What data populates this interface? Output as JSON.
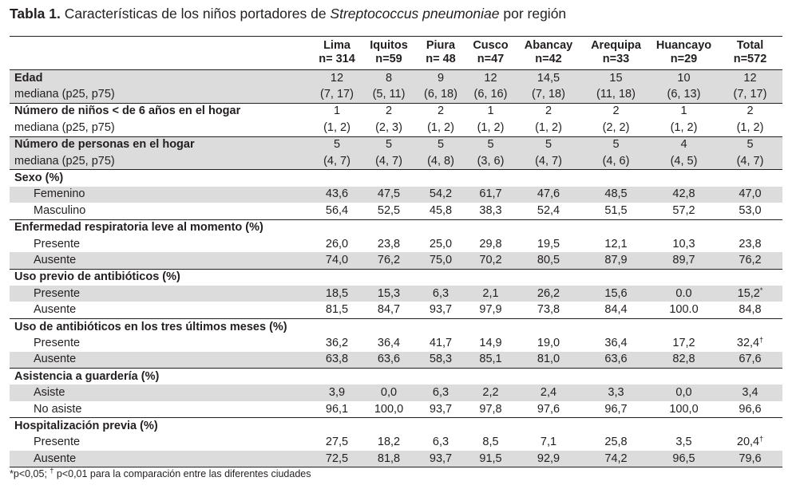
{
  "caption": {
    "label": "Tabla 1.",
    "text_before": " Características de los niños portadores de ",
    "species": "Streptococcus pneumoniae",
    "text_after": " por región"
  },
  "columns": [
    {
      "name": "Lima",
      "n": "n= 314"
    },
    {
      "name": "Iquitos",
      "n": "n=59"
    },
    {
      "name": "Piura",
      "n": "n= 48"
    },
    {
      "name": "Cusco",
      "n": "n=47"
    },
    {
      "name": "Abancay",
      "n": "n=42"
    },
    {
      "name": "Arequipa",
      "n": "n=33"
    },
    {
      "name": "Huancayo",
      "n": "n=29"
    },
    {
      "name": "Total",
      "n": "n=572"
    }
  ],
  "rows": [
    {
      "label": "Edad",
      "kind": "bold",
      "band": true,
      "top": true,
      "values": [
        "12",
        "8",
        "9",
        "12",
        "14,5",
        "15",
        "10",
        "12"
      ]
    },
    {
      "label": "mediana (p25, p75)",
      "kind": "plain",
      "band": true,
      "values": [
        "(7, 17)",
        "(5, 11)",
        "(6, 18)",
        "(6, 16)",
        "(7, 18)",
        "(11, 18)",
        "(6, 13)",
        "(7, 17)"
      ]
    },
    {
      "label": "Número de niños < de 6 años en el hogar",
      "kind": "bold",
      "band": false,
      "top": true,
      "values": [
        "1",
        "2",
        "2",
        "1",
        "2",
        "2",
        "1",
        "2"
      ]
    },
    {
      "label": "mediana (p25, p75)",
      "kind": "plain",
      "band": false,
      "values": [
        "(1, 2)",
        "(2, 3)",
        "(1, 2)",
        "(1, 2)",
        "(1, 2)",
        "(2, 2)",
        "(1, 2)",
        "(1, 2)"
      ]
    },
    {
      "label": "Número de personas en el hogar",
      "kind": "bold",
      "band": true,
      "top": true,
      "values": [
        "5",
        "5",
        "5",
        "5",
        "5",
        "5",
        "4",
        "5"
      ]
    },
    {
      "label": "mediana (p25, p75)",
      "kind": "plain",
      "band": true,
      "values": [
        "(4, 7)",
        "(4, 7)",
        "(4, 8)",
        "(3, 6)",
        "(4, 7)",
        "(4, 6)",
        "(4, 5)",
        "(4, 7)"
      ]
    },
    {
      "label": "Sexo (%)",
      "kind": "bold",
      "band": false,
      "top": true,
      "values": [
        "",
        "",
        "",
        "",
        "",
        "",
        "",
        ""
      ]
    },
    {
      "label": "Femenino",
      "kind": "indent",
      "band": true,
      "values": [
        "43,6",
        "47,5",
        "54,2",
        "61,7",
        "47,6",
        "48,5",
        "42,8",
        "47,0"
      ]
    },
    {
      "label": "Masculino",
      "kind": "indent",
      "band": false,
      "values": [
        "56,4",
        "52,5",
        "45,8",
        "38,3",
        "52,4",
        "51,5",
        "57,2",
        "53,0"
      ]
    },
    {
      "label": "Enfermedad respiratoria leve al momento (%)",
      "kind": "bold",
      "band": false,
      "top": true,
      "values": [
        "",
        "",
        "",
        "",
        "",
        "",
        "",
        ""
      ]
    },
    {
      "label": "Presente",
      "kind": "indent",
      "band": false,
      "values": [
        "26,0",
        "23,8",
        "25,0",
        "29,8",
        "19,5",
        "12,1",
        "10,3",
        "23,8"
      ]
    },
    {
      "label": "Ausente",
      "kind": "indent",
      "band": true,
      "values": [
        "74,0",
        "76,2",
        "75,0",
        "70,2",
        "80,5",
        "87,9",
        "89,7",
        "76,2"
      ]
    },
    {
      "label": "Uso previo de antibióticos (%)",
      "kind": "bold",
      "band": false,
      "top": true,
      "values": [
        "",
        "",
        "",
        "",
        "",
        "",
        "",
        ""
      ]
    },
    {
      "label": "Presente",
      "kind": "indent",
      "band": true,
      "values": [
        "18,5",
        "15,3",
        "6,3",
        "2,1",
        "26,2",
        "15,6",
        "0.0",
        "15,2*"
      ]
    },
    {
      "label": "Ausente",
      "kind": "indent",
      "band": false,
      "values": [
        "81,5",
        "84,7",
        "93,7",
        "97,9",
        "73,8",
        "84,4",
        "100.0",
        "84,8"
      ]
    },
    {
      "label": "Uso de antibióticos en los tres últimos meses (%)",
      "kind": "bold",
      "band": false,
      "top": true,
      "values": [
        "",
        "",
        "",
        "",
        "",
        "",
        "",
        ""
      ]
    },
    {
      "label": "Presente",
      "kind": "indent",
      "band": false,
      "values": [
        "36,2",
        "36,4",
        "41,7",
        "14,9",
        "19,0",
        "36,4",
        "17,2",
        "32,4†"
      ]
    },
    {
      "label": "Ausente",
      "kind": "indent",
      "band": true,
      "values": [
        "63,8",
        "63,6",
        "58,3",
        "85,1",
        "81,0",
        "63,6",
        "82,8",
        "67,6"
      ]
    },
    {
      "label": "Asistencia a guardería (%)",
      "kind": "bold",
      "band": false,
      "top": true,
      "values": [
        "",
        "",
        "",
        "",
        "",
        "",
        "",
        ""
      ]
    },
    {
      "label": "Asiste",
      "kind": "indent",
      "band": true,
      "values": [
        "3,9",
        "0,0",
        "6,3",
        "2,2",
        "2,4",
        "3,3",
        "0,0",
        "3,4"
      ]
    },
    {
      "label": "No asiste",
      "kind": "indent",
      "band": false,
      "values": [
        "96,1",
        "100,0",
        "93,7",
        "97,8",
        "97,6",
        "96,7",
        "100,0",
        "96,6"
      ]
    },
    {
      "label": "Hospitalización previa (%)",
      "kind": "bold",
      "band": false,
      "top": true,
      "values": [
        "",
        "",
        "",
        "",
        "",
        "",
        "",
        ""
      ]
    },
    {
      "label": "Presente",
      "kind": "indent",
      "band": false,
      "values": [
        "27,5",
        "18,2",
        "6,3",
        "8,5",
        "7,1",
        "25,8",
        "3,5",
        "20,4†"
      ]
    },
    {
      "label": "Ausente",
      "kind": "indent",
      "band": true,
      "values": [
        "72,5",
        "81,8",
        "93,7",
        "91,5",
        "92,9",
        "74,2",
        "96,5",
        "79,6"
      ]
    }
  ],
  "footnote": {
    "a": "*p<0,05; ",
    "dagger": "†",
    "b": " p<0,01 para la comparación entre las diferentes ciudades"
  },
  "colors": {
    "band": "#dcdcdc",
    "text": "#231f20",
    "rule": "#231f20"
  }
}
